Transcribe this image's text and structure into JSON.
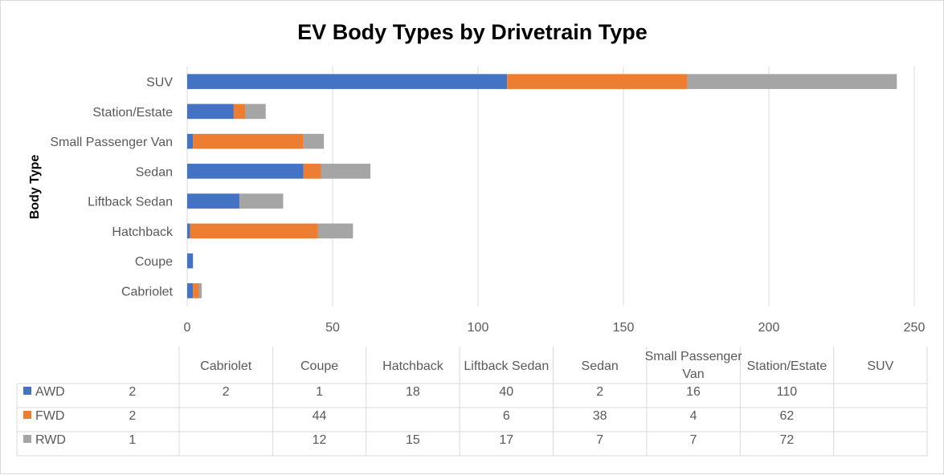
{
  "chart_data": {
    "type": "bar",
    "orientation": "horizontal",
    "stacked": true,
    "title": "EV Body Types by Drivetrain Type",
    "ylabel": "Body Type",
    "xlabel": "",
    "categories": [
      "Cabriolet",
      "Coupe",
      "Hatchback",
      "Liftback Sedan",
      "Sedan",
      "Small Passenger Van",
      "Station/Estate",
      "SUV"
    ],
    "table_headers": [
      "Cabriolet",
      "Coupe",
      "Hatchback",
      "Liftback Sedan",
      "Sedan",
      "Small Passenger\nVan",
      "Station/Estate",
      "SUV"
    ],
    "series": [
      {
        "name": "AWD",
        "color": "#4472c4",
        "values": [
          2,
          2,
          1,
          18,
          40,
          2,
          16,
          110
        ]
      },
      {
        "name": "FWD",
        "color": "#ed7d31",
        "values": [
          2,
          null,
          44,
          null,
          6,
          38,
          4,
          62
        ]
      },
      {
        "name": "RWD",
        "color": "#a5a5a5",
        "values": [
          1,
          null,
          12,
          15,
          17,
          7,
          7,
          72
        ]
      }
    ],
    "xlim": [
      0,
      250
    ],
    "xticks": [
      0,
      50,
      100,
      150,
      200,
      250
    ],
    "grid": true,
    "legend": "data-table"
  }
}
